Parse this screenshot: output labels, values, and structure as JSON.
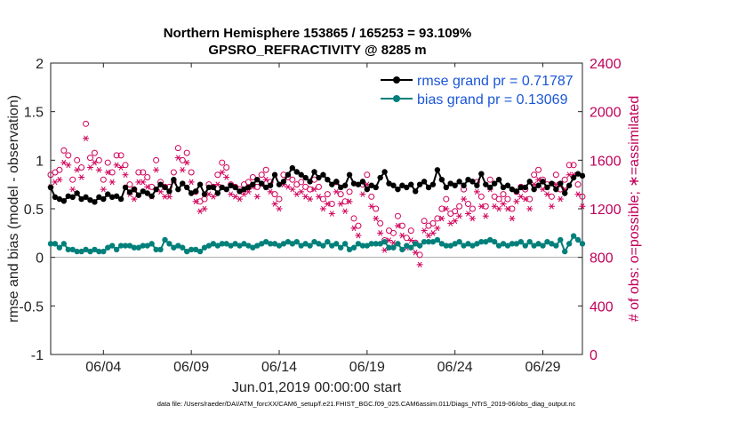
{
  "chart_data": {
    "type": "line",
    "title": "Northern Hemisphere 153865 / 165253 = 93.109%",
    "subtitle": "GPSRO_REFRACTIVITY @ 8285 m",
    "xlabel": "Jun.01,2019 00:00:00 start",
    "ylabel": "rmse and bias (model - observation)",
    "ylabel_right": "# of obs: o=possible; ∗=assimilated",
    "xlim": [
      1,
      31.25
    ],
    "ylim": [
      -1,
      2
    ],
    "ylim_right": [
      0,
      2400
    ],
    "x_ticks": [
      {
        "value": 4,
        "label": "06/04"
      },
      {
        "value": 9,
        "label": "06/09"
      },
      {
        "value": 14,
        "label": "06/14"
      },
      {
        "value": 19,
        "label": "06/19"
      },
      {
        "value": 24,
        "label": "06/24"
      },
      {
        "value": 29,
        "label": "06/29"
      }
    ],
    "y_ticks": [
      "-1",
      "-0.5",
      "0",
      "0.5",
      "1",
      "1.5",
      "2"
    ],
    "y_ticks_right": [
      "0",
      "400",
      "800",
      "1200",
      "1600",
      "2000",
      "2400"
    ],
    "legend": [
      {
        "label": "rmse grand pr = 0.71787",
        "color": "#000000"
      },
      {
        "label": "bias grand pr = 0.13069",
        "color": "#00807a"
      }
    ],
    "footnote": "data file: /Users/raeder/DAI/ATM_forcXX/CAM6_setup/f.e21.FHIST_BGC.f09_025.CAM6assim.011/Diags_NTrS_2019-06/obs_diag_output.nc",
    "series": [
      {
        "name": "rmse",
        "color": "#000000",
        "axis": "left",
        "x": [
          1.0,
          1.25,
          1.5,
          1.75,
          2.0,
          2.25,
          2.5,
          2.75,
          3.0,
          3.25,
          3.5,
          3.75,
          4.0,
          4.25,
          4.5,
          4.75,
          5.0,
          5.25,
          5.5,
          5.75,
          6.0,
          6.25,
          6.5,
          6.75,
          7.0,
          7.25,
          7.5,
          7.75,
          8.0,
          8.25,
          8.5,
          8.75,
          9.0,
          9.25,
          9.5,
          9.75,
          10.0,
          10.25,
          10.5,
          10.75,
          11.0,
          11.25,
          11.5,
          11.75,
          12.0,
          12.25,
          12.5,
          12.75,
          13.0,
          13.25,
          13.5,
          13.75,
          14.0,
          14.25,
          14.5,
          14.75,
          15.0,
          15.25,
          15.5,
          15.75,
          16.0,
          16.25,
          16.5,
          16.75,
          17.0,
          17.25,
          17.5,
          17.75,
          18.0,
          18.25,
          18.5,
          18.75,
          19.0,
          19.25,
          19.5,
          19.75,
          20.0,
          20.25,
          20.5,
          20.75,
          21.0,
          21.25,
          21.5,
          21.75,
          22.0,
          22.25,
          22.5,
          22.75,
          23.0,
          23.25,
          23.5,
          23.75,
          24.0,
          24.25,
          24.5,
          24.75,
          25.0,
          25.25,
          25.5,
          25.75,
          26.0,
          26.25,
          26.5,
          26.75,
          27.0,
          27.25,
          27.5,
          27.75,
          28.0,
          28.25,
          28.5,
          28.75,
          29.0,
          29.25,
          29.5,
          29.75,
          30.0,
          30.25,
          30.5,
          30.75,
          31.0,
          31.25
        ],
        "values": [
          0.72,
          0.62,
          0.6,
          0.58,
          0.63,
          0.62,
          0.66,
          0.6,
          0.62,
          0.59,
          0.57,
          0.62,
          0.6,
          0.65,
          0.62,
          0.63,
          0.6,
          0.72,
          0.67,
          0.7,
          0.64,
          0.68,
          0.66,
          0.63,
          0.7,
          0.75,
          0.72,
          0.68,
          0.8,
          0.7,
          0.76,
          0.72,
          0.66,
          0.68,
          0.75,
          0.65,
          0.72,
          0.72,
          0.66,
          0.72,
          0.7,
          0.74,
          0.72,
          0.68,
          0.7,
          0.72,
          0.75,
          0.8,
          0.76,
          0.72,
          0.74,
          0.85,
          0.75,
          0.78,
          0.85,
          0.92,
          0.88,
          0.85,
          0.82,
          0.78,
          0.88,
          0.82,
          0.85,
          0.8,
          0.75,
          0.78,
          0.72,
          0.74,
          0.85,
          0.76,
          0.75,
          0.78,
          0.7,
          0.74,
          0.72,
          0.82,
          0.88,
          0.76,
          0.74,
          0.7,
          0.74,
          0.72,
          0.75,
          0.68,
          0.75,
          0.78,
          0.72,
          0.75,
          0.9,
          0.8,
          0.72,
          0.76,
          0.74,
          0.78,
          0.74,
          0.8,
          0.78,
          0.74,
          0.86,
          0.75,
          0.72,
          0.76,
          0.8,
          0.72,
          0.74,
          0.7,
          0.68,
          0.72,
          0.72,
          0.78,
          0.7,
          0.74,
          0.78,
          0.72,
          0.76,
          0.7,
          0.76,
          0.66,
          0.74,
          0.82,
          0.86,
          0.84
        ]
      },
      {
        "name": "bias",
        "color": "#00807a",
        "axis": "left",
        "x": [
          1.0,
          1.25,
          1.5,
          1.75,
          2.0,
          2.25,
          2.5,
          2.75,
          3.0,
          3.25,
          3.5,
          3.75,
          4.0,
          4.25,
          4.5,
          4.75,
          5.0,
          5.25,
          5.5,
          5.75,
          6.0,
          6.25,
          6.5,
          6.75,
          7.0,
          7.25,
          7.5,
          7.75,
          8.0,
          8.25,
          8.5,
          8.75,
          9.0,
          9.25,
          9.5,
          9.75,
          10.0,
          10.25,
          10.5,
          10.75,
          11.0,
          11.25,
          11.5,
          11.75,
          12.0,
          12.25,
          12.5,
          12.75,
          13.0,
          13.25,
          13.5,
          13.75,
          14.0,
          14.25,
          14.5,
          14.75,
          15.0,
          15.25,
          15.5,
          15.75,
          16.0,
          16.25,
          16.5,
          16.75,
          17.0,
          17.25,
          17.5,
          17.75,
          18.0,
          18.25,
          18.5,
          18.75,
          19.0,
          19.25,
          19.5,
          19.75,
          20.0,
          20.25,
          20.5,
          20.75,
          21.0,
          21.25,
          21.5,
          21.75,
          22.0,
          22.25,
          22.5,
          22.75,
          23.0,
          23.25,
          23.5,
          23.75,
          24.0,
          24.25,
          24.5,
          24.75,
          25.0,
          25.25,
          25.5,
          25.75,
          26.0,
          26.25,
          26.5,
          26.75,
          27.0,
          27.25,
          27.5,
          27.75,
          28.0,
          28.25,
          28.5,
          28.75,
          29.0,
          29.25,
          29.5,
          29.75,
          30.0,
          30.25,
          30.5,
          30.75,
          31.0,
          31.25
        ],
        "values": [
          0.14,
          0.14,
          0.1,
          0.14,
          0.08,
          0.08,
          0.06,
          0.06,
          0.08,
          0.06,
          0.08,
          0.06,
          0.06,
          0.1,
          0.12,
          0.08,
          0.12,
          0.12,
          0.12,
          0.1,
          0.1,
          0.12,
          0.12,
          0.14,
          0.08,
          0.08,
          0.18,
          0.14,
          0.1,
          0.12,
          0.1,
          0.06,
          0.08,
          0.08,
          0.06,
          0.1,
          0.12,
          0.14,
          0.12,
          0.14,
          0.14,
          0.12,
          0.14,
          0.12,
          0.14,
          0.12,
          0.1,
          0.12,
          0.14,
          0.16,
          0.14,
          0.14,
          0.12,
          0.14,
          0.16,
          0.14,
          0.16,
          0.12,
          0.14,
          0.12,
          0.16,
          0.14,
          0.12,
          0.16,
          0.12,
          0.14,
          0.1,
          0.14,
          0.08,
          0.1,
          0.14,
          0.12,
          0.12,
          0.14,
          0.14,
          0.14,
          0.16,
          0.1,
          0.1,
          0.14,
          0.08,
          0.12,
          0.1,
          0.14,
          0.12,
          0.16,
          0.16,
          0.16,
          0.18,
          0.14,
          0.12,
          0.12,
          0.14,
          0.16,
          0.12,
          0.14,
          0.12,
          0.14,
          0.16,
          0.16,
          0.18,
          0.16,
          0.12,
          0.14,
          0.12,
          0.14,
          0.14,
          0.16,
          0.12,
          0.16,
          0.12,
          0.14,
          0.12,
          0.16,
          0.14,
          0.12,
          0.18,
          0.06,
          0.14,
          0.22,
          0.18,
          0.14
        ]
      },
      {
        "name": "possible",
        "marker": "circle",
        "color": "#d0005a",
        "axis": "right",
        "x": [
          1.0,
          1.25,
          1.5,
          1.75,
          2.0,
          2.25,
          2.5,
          2.75,
          3.0,
          3.25,
          3.5,
          3.75,
          4.0,
          4.25,
          4.5,
          4.75,
          5.0,
          5.25,
          5.5,
          5.75,
          6.0,
          6.25,
          6.5,
          6.75,
          7.0,
          7.25,
          7.5,
          7.75,
          8.0,
          8.25,
          8.5,
          8.75,
          9.0,
          9.25,
          9.5,
          9.75,
          10.0,
          10.25,
          10.5,
          10.75,
          11.0,
          11.25,
          11.5,
          11.75,
          12.0,
          12.25,
          12.5,
          12.75,
          13.0,
          13.25,
          13.5,
          13.75,
          14.0,
          14.25,
          14.5,
          14.75,
          15.0,
          15.25,
          15.5,
          15.75,
          16.0,
          16.25,
          16.5,
          16.75,
          17.0,
          17.25,
          17.5,
          17.75,
          18.0,
          18.25,
          18.5,
          18.75,
          19.0,
          19.25,
          19.5,
          19.75,
          20.0,
          20.25,
          20.5,
          20.75,
          21.0,
          21.25,
          21.5,
          21.75,
          22.0,
          22.25,
          22.5,
          22.75,
          23.0,
          23.25,
          23.5,
          23.75,
          24.0,
          24.25,
          24.5,
          24.75,
          25.0,
          25.25,
          25.5,
          25.75,
          26.0,
          26.25,
          26.5,
          26.75,
          27.0,
          27.25,
          27.5,
          27.75,
          28.0,
          28.25,
          28.5,
          28.75,
          29.0,
          29.25,
          29.5,
          29.75,
          30.0,
          30.25,
          30.5,
          30.75,
          31.0,
          31.25
        ],
        "values": [
          1480,
          1500,
          1520,
          1680,
          1640,
          1440,
          1600,
          1540,
          1900,
          1620,
          1660,
          1600,
          1440,
          1580,
          1500,
          1640,
          1640,
          1560,
          1400,
          1360,
          1500,
          1500,
          1460,
          1380,
          1600,
          1420,
          1380,
          1380,
          1500,
          1700,
          1600,
          1660,
          1500,
          1340,
          1260,
          1280,
          1400,
          1380,
          1480,
          1580,
          1540,
          1400,
          1380,
          1360,
          1400,
          1420,
          1460,
          1380,
          1480,
          1520,
          1420,
          1320,
          1280,
          1480,
          1460,
          1440,
          1400,
          1420,
          1380,
          1360,
          1440,
          1380,
          1280,
          1320,
          1240,
          1420,
          1320,
          1260,
          1340,
          1120,
          1060,
          1400,
          1480,
          1300,
          1200,
          1080,
          940,
          1020,
          1000,
          1140,
          1060,
          960,
          1020,
          920,
          820,
          1100,
          1060,
          1080,
          1120,
          1200,
          1280,
          1160,
          1180,
          1220,
          1360,
          1240,
          1200,
          1420,
          1300,
          1220,
          1440,
          1300,
          1280,
          1320,
          1280,
          1200,
          1340,
          1380,
          1360,
          1280,
          1480,
          1520,
          1440,
          1400,
          1300,
          1480,
          1360,
          1440,
          1560,
          1560,
          1400,
          1300
        ]
      },
      {
        "name": "assimilated",
        "marker": "asterisk",
        "color": "#d0005a",
        "axis": "right",
        "x": [
          1.0,
          1.25,
          1.5,
          1.75,
          2.0,
          2.25,
          2.5,
          2.75,
          3.0,
          3.25,
          3.5,
          3.75,
          4.0,
          4.25,
          4.5,
          4.75,
          5.0,
          5.25,
          5.5,
          5.75,
          6.0,
          6.25,
          6.5,
          6.75,
          7.0,
          7.25,
          7.5,
          7.75,
          8.0,
          8.25,
          8.5,
          8.75,
          9.0,
          9.25,
          9.5,
          9.75,
          10.0,
          10.25,
          10.5,
          10.75,
          11.0,
          11.25,
          11.5,
          11.75,
          12.0,
          12.25,
          12.5,
          12.75,
          13.0,
          13.25,
          13.5,
          13.75,
          14.0,
          14.25,
          14.5,
          14.75,
          15.0,
          15.25,
          15.5,
          15.75,
          16.0,
          16.25,
          16.5,
          16.75,
          17.0,
          17.25,
          17.5,
          17.75,
          18.0,
          18.25,
          18.5,
          18.75,
          19.0,
          19.25,
          19.5,
          19.75,
          20.0,
          20.25,
          20.5,
          20.75,
          21.0,
          21.25,
          21.5,
          21.75,
          22.0,
          22.25,
          22.5,
          22.75,
          23.0,
          23.25,
          23.5,
          23.75,
          24.0,
          24.25,
          24.5,
          24.75,
          25.0,
          25.25,
          25.5,
          25.75,
          26.0,
          26.25,
          26.5,
          26.75,
          27.0,
          27.25,
          27.5,
          27.75,
          28.0,
          28.25,
          28.5,
          28.75,
          29.0,
          29.25,
          29.5,
          29.75,
          30.0,
          30.25,
          30.5,
          30.75,
          31.0,
          31.25
        ],
        "values": [
          1380,
          1420,
          1440,
          1580,
          1560,
          1360,
          1520,
          1460,
          1780,
          1540,
          1580,
          1520,
          1360,
          1500,
          1420,
          1560,
          1540,
          1480,
          1320,
          1280,
          1420,
          1420,
          1380,
          1300,
          1520,
          1340,
          1300,
          1300,
          1420,
          1620,
          1520,
          1580,
          1420,
          1260,
          1180,
          1200,
          1320,
          1300,
          1400,
          1500,
          1460,
          1320,
          1300,
          1280,
          1320,
          1340,
          1380,
          1300,
          1400,
          1440,
          1340,
          1240,
          1200,
          1400,
          1380,
          1360,
          1320,
          1340,
          1300,
          1280,
          1360,
          1300,
          1200,
          1240,
          1160,
          1340,
          1240,
          1180,
          1260,
          1040,
          980,
          1320,
          1400,
          1220,
          1120,
          1000,
          860,
          940,
          920,
          1060,
          980,
          880,
          940,
          840,
          740,
          1020,
          980,
          1000,
          1040,
          1120,
          1200,
          1080,
          1100,
          1140,
          1280,
          1160,
          1120,
          1340,
          1220,
          1140,
          1360,
          1220,
          1200,
          1240,
          1200,
          1120,
          1260,
          1300,
          1280,
          1200,
          1400,
          1440,
          1360,
          1320,
          1220,
          1400,
          1280,
          1360,
          1480,
          1480,
          1320,
          1220
        ]
      }
    ]
  }
}
